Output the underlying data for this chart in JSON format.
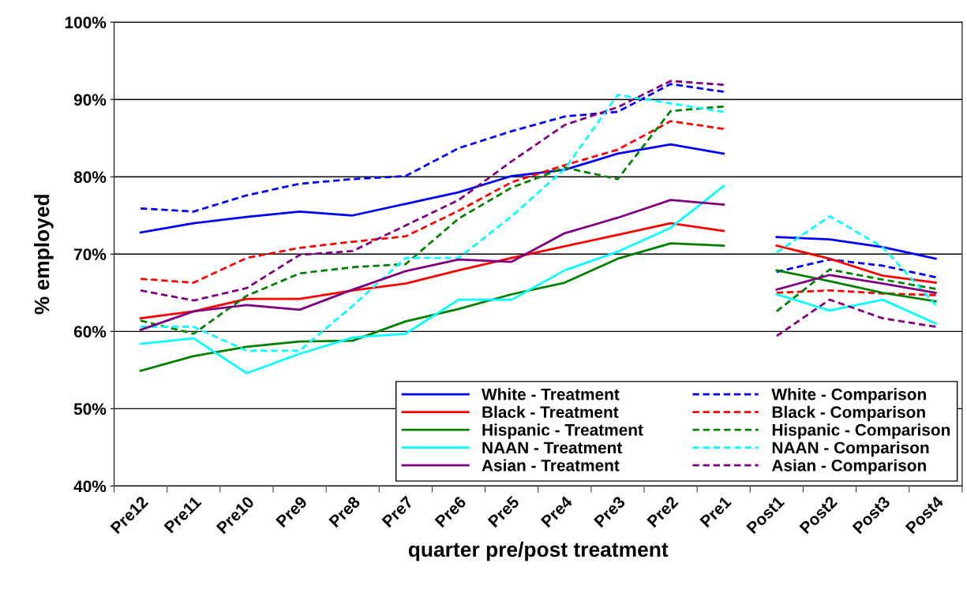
{
  "chart_data": {
    "type": "line",
    "xlabel": "quarter pre/post treatment",
    "ylabel": "% employed",
    "categories": [
      "Pre12",
      "Pre11",
      "Pre10",
      "Pre9",
      "Pre8",
      "Pre7",
      "Pre6",
      "Pre5",
      "Pre4",
      "Pre3",
      "Pre2",
      "Pre1",
      "Post1",
      "Post2",
      "Post3",
      "Post4"
    ],
    "ylim": [
      40,
      100
    ],
    "yticks": [
      {
        "value": 40,
        "label": "40%"
      },
      {
        "value": 50,
        "label": "50%"
      },
      {
        "value": 60,
        "label": "60%"
      },
      {
        "value": 70,
        "label": "70%"
      },
      {
        "value": 80,
        "label": "80%"
      },
      {
        "value": 90,
        "label": "90%"
      },
      {
        "value": 100,
        "label": "100%"
      }
    ],
    "grid": "y",
    "legend": "bottom right",
    "marker": "none",
    "series": [
      {
        "name": "White - Treatment",
        "color": "#0000ff",
        "line_style": "solid",
        "values": [
          72.8,
          74.0,
          74.8,
          75.5,
          75.0,
          76.5,
          78.0,
          80.1,
          80.9,
          83.0,
          84.2,
          83.0,
          null,
          null,
          null,
          null
        ]
      },
      {
        "name": "White - Comparison",
        "color": "#0000ff",
        "line_style": "dashed",
        "values": [
          75.9,
          75.5,
          77.6,
          79.1,
          79.7,
          80.1,
          83.7,
          85.9,
          87.8,
          88.4,
          92.0,
          91.0,
          null,
          null,
          null,
          null
        ]
      },
      {
        "name": "Black - Treatment",
        "color": "#ff0000",
        "line_style": "solid",
        "values": [
          61.7,
          62.6,
          64.2,
          64.2,
          65.3,
          66.2,
          67.9,
          69.5,
          71.0,
          72.5,
          74.0,
          73.0,
          null,
          null,
          null,
          null
        ]
      },
      {
        "name": "Black - Comparison",
        "color": "#ff0000",
        "line_style": "dashed",
        "values": [
          66.8,
          66.3,
          69.5,
          70.8,
          71.6,
          72.3,
          75.6,
          79.3,
          81.5,
          83.5,
          87.2,
          86.2,
          null,
          null,
          null,
          null
        ]
      },
      {
        "name": "Hispanic - Treatment",
        "color": "#008000",
        "line_style": "solid",
        "values": [
          54.9,
          56.8,
          58.0,
          58.7,
          58.8,
          61.3,
          62.9,
          64.8,
          66.3,
          69.4,
          71.4,
          71.1,
          null,
          null,
          null,
          null
        ]
      },
      {
        "name": "Hispanic - Comparison",
        "color": "#008000",
        "line_style": "dashed",
        "values": [
          61.4,
          59.7,
          64.6,
          67.5,
          68.3,
          68.7,
          74.6,
          78.6,
          81.2,
          79.7,
          88.5,
          89.1,
          null,
          null,
          null,
          null
        ]
      },
      {
        "name": "NAAN - Treatment",
        "color": "#00ffff",
        "line_style": "solid",
        "values": [
          58.4,
          59.1,
          54.6,
          57.1,
          59.2,
          59.7,
          64.1,
          64.1,
          67.9,
          70.3,
          73.4,
          78.8,
          null,
          null,
          null,
          null
        ]
      },
      {
        "name": "NAAN - Comparison",
        "color": "#00ffff",
        "line_style": "dashed",
        "values": [
          60.6,
          60.6,
          57.5,
          57.5,
          63.3,
          69.5,
          69.5,
          74.9,
          81.0,
          90.6,
          89.5,
          88.4,
          null,
          null,
          null,
          null
        ]
      },
      {
        "name": "Asian - Treatment",
        "color": "#800080",
        "line_style": "solid",
        "values": [
          60.2,
          62.6,
          63.4,
          62.8,
          65.4,
          67.8,
          69.3,
          69.0,
          72.7,
          74.7,
          77.0,
          76.4,
          null,
          null,
          null,
          null
        ]
      },
      {
        "name": "Asian - Comparison",
        "color": "#800080",
        "line_style": "dashed",
        "values": [
          65.3,
          64.0,
          65.6,
          69.9,
          70.4,
          73.7,
          77.0,
          82.0,
          86.7,
          89.0,
          92.4,
          91.9,
          null,
          null,
          null,
          null
        ]
      },
      {
        "color": "#0000ff",
        "line_style": "solid",
        "values": [
          null,
          null,
          null,
          null,
          null,
          null,
          null,
          null,
          null,
          null,
          null,
          null,
          72.2,
          71.9,
          70.9,
          69.4
        ]
      },
      {
        "color": "#0000ff",
        "line_style": "dashed",
        "values": [
          null,
          null,
          null,
          null,
          null,
          null,
          null,
          null,
          null,
          null,
          null,
          null,
          67.7,
          69.3,
          68.5,
          67.0
        ]
      },
      {
        "color": "#ff0000",
        "line_style": "solid",
        "values": [
          null,
          null,
          null,
          null,
          null,
          null,
          null,
          null,
          null,
          null,
          null,
          null,
          71.1,
          69.4,
          67.2,
          66.3
        ]
      },
      {
        "color": "#ff0000",
        "line_style": "dashed",
        "values": [
          null,
          null,
          null,
          null,
          null,
          null,
          null,
          null,
          null,
          null,
          null,
          null,
          65.0,
          65.3,
          64.9,
          64.7
        ]
      },
      {
        "color": "#008000",
        "line_style": "solid",
        "values": [
          null,
          null,
          null,
          null,
          null,
          null,
          null,
          null,
          null,
          null,
          null,
          null,
          67.9,
          66.5,
          65.0,
          63.9
        ]
      },
      {
        "color": "#008000",
        "line_style": "dashed",
        "values": [
          null,
          null,
          null,
          null,
          null,
          null,
          null,
          null,
          null,
          null,
          null,
          null,
          62.6,
          68.0,
          66.7,
          65.5
        ]
      },
      {
        "color": "#00ffff",
        "line_style": "solid",
        "values": [
          null,
          null,
          null,
          null,
          null,
          null,
          null,
          null,
          null,
          null,
          null,
          null,
          64.8,
          62.7,
          64.1,
          61.0
        ]
      },
      {
        "color": "#00ffff",
        "line_style": "dashed",
        "values": [
          null,
          null,
          null,
          null,
          null,
          null,
          null,
          null,
          null,
          null,
          null,
          null,
          70.2,
          74.9,
          70.9,
          63.4
        ]
      },
      {
        "color": "#800080",
        "line_style": "solid",
        "values": [
          null,
          null,
          null,
          null,
          null,
          null,
          null,
          null,
          null,
          null,
          null,
          null,
          65.4,
          67.3,
          66.2,
          65.0
        ]
      },
      {
        "color": "#800080",
        "line_style": "dashed",
        "values": [
          null,
          null,
          null,
          null,
          null,
          null,
          null,
          null,
          null,
          null,
          null,
          null,
          59.4,
          64.1,
          61.7,
          60.6
        ]
      }
    ]
  }
}
